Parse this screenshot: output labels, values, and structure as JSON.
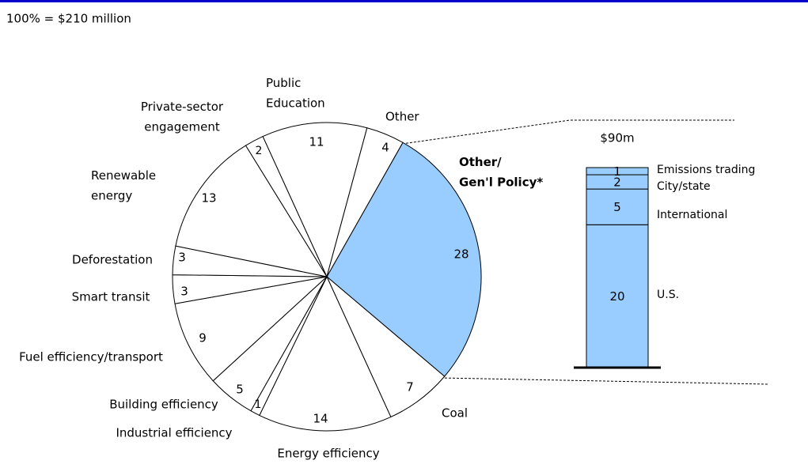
{
  "chart_data": {
    "type": "pie",
    "subtitle": "100% = $210 million",
    "categories": [
      "Other/\nGen'l Policy*",
      "Coal",
      "Energy efficiency",
      "Industrial efficiency",
      "Building efficiency",
      "Fuel efficiency/transport",
      "Smart transit",
      "Deforestation",
      "Renewable\nenergy",
      "Private-sector\nengagement",
      "Public\nEducation",
      "Other"
    ],
    "values": [
      28,
      7,
      14,
      1,
      5,
      9,
      3,
      3,
      13,
      2,
      11,
      4
    ],
    "colors": [
      "#99ccff",
      "#ffffff",
      "#ffffff",
      "#ffffff",
      "#ffffff",
      "#ffffff",
      "#ffffff",
      "#ffffff",
      "#ffffff",
      "#ffffff",
      "#ffffff",
      "#ffffff"
    ],
    "breakdown": {
      "type": "stacked-bar",
      "title": "$90m",
      "color": "#99ccff",
      "categories": [
        "U.S.",
        "International",
        "City/state",
        "Emissions trading"
      ],
      "values": [
        20,
        5,
        2,
        1
      ]
    }
  }
}
